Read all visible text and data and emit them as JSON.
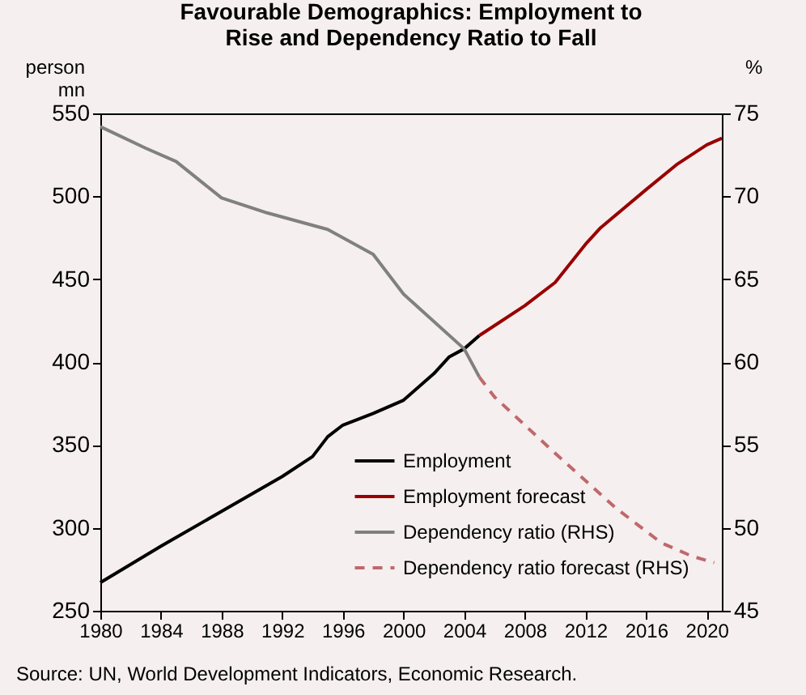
{
  "chart_data": {
    "type": "line",
    "title": "Favourable Demographics: Employment to Rise and Dependency Ratio to Fall",
    "ylabel": "person mn",
    "y2label": "%",
    "xlim": [
      1980,
      2021
    ],
    "xticks": [
      1980,
      1984,
      1988,
      1992,
      1996,
      2000,
      2004,
      2008,
      2012,
      2016,
      2020
    ],
    "ylim": [
      250,
      550
    ],
    "yticks": [
      250,
      300,
      350,
      400,
      450,
      500,
      550
    ],
    "y2lim": [
      45,
      75
    ],
    "y2ticks": [
      45,
      50,
      55,
      60,
      65,
      70,
      75
    ],
    "grid": false,
    "legend": "bottom right",
    "marker": "none",
    "series": [
      {
        "name": "Employment",
        "color": "#000000",
        "line_style": "solid",
        "x": [
          1980,
          1984,
          1988,
          1992,
          1994,
          1995,
          1996,
          1998,
          2000,
          2002,
          2003,
          2004,
          2005
        ],
        "values": [
          267,
          289,
          310,
          331,
          343,
          355,
          362,
          369,
          377,
          393,
          403,
          408,
          416
        ]
      },
      {
        "name": "Employment forecast",
        "color": "#990000",
        "line_style": "solid",
        "x": [
          2005,
          2006,
          2008,
          2010,
          2012,
          2013,
          2016,
          2018,
          2020,
          2021
        ],
        "values": [
          416,
          422,
          434,
          448,
          471,
          481,
          504,
          519,
          531,
          535
        ]
      },
      {
        "name": "Dependency ratio (RHS)",
        "color": "#808080",
        "line_style": "solid",
        "axis": "y2",
        "x": [
          1980,
          1983,
          1985,
          1988,
          1991,
          1995,
          1998,
          2000,
          2004,
          2005
        ],
        "values": [
          74.2,
          72.9,
          72.1,
          69.9,
          69.0,
          68.0,
          66.5,
          64.1,
          60.8,
          59.1
        ]
      },
      {
        "name": "Dependency ratio forecast (RHS)",
        "color": "#c0686b",
        "line_style": "dashed",
        "axis": "y2",
        "x": [
          2005,
          2006,
          2010,
          2014,
          2017,
          2019,
          2020.5
        ],
        "values": [
          59.1,
          57.9,
          54.5,
          51.2,
          49.1,
          48.3,
          47.9
        ]
      }
    ],
    "annotations": [
      "Source: UN, World Development Indicators, Economic Research."
    ]
  }
}
